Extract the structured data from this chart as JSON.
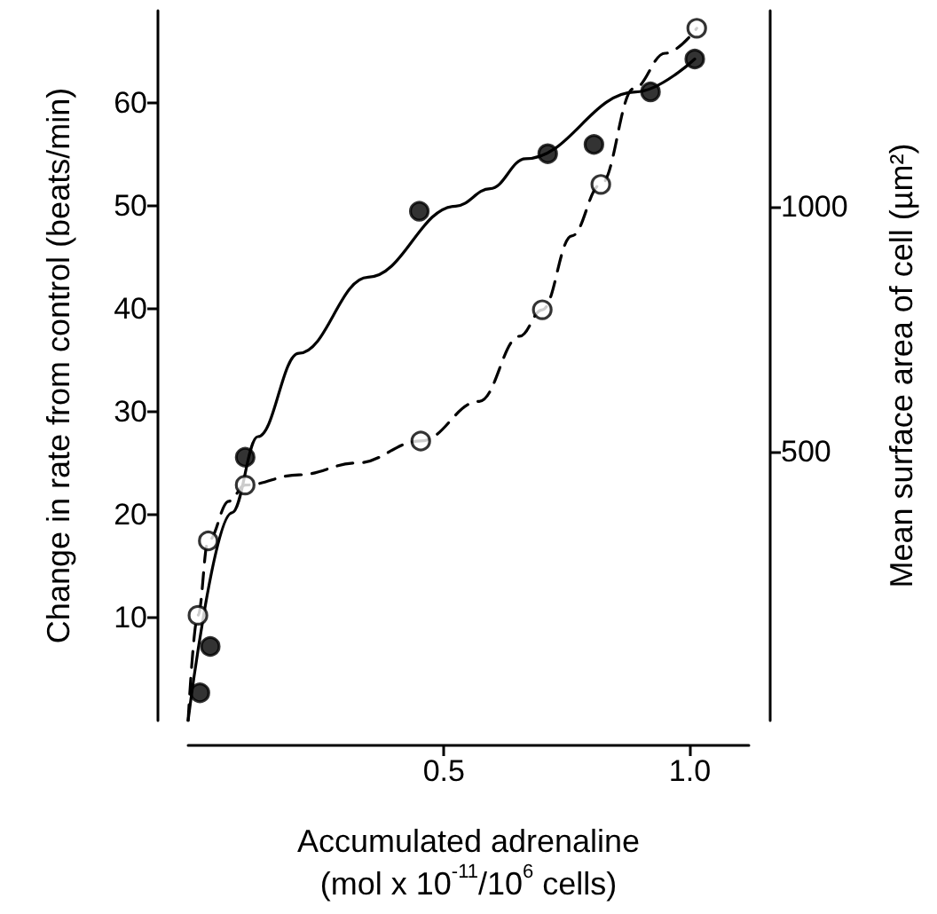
{
  "chart_data": {
    "type": "scatter",
    "xlabel": "Accumulated adrenaline\n(mol x 10$^{-11}$/10$^{6}$ cells)",
    "ylabel": "Change in rate from control (beats/min)",
    "y2label": "Mean surface area of cell (µm²)",
    "xlim": [
      -0.02,
      1.12
    ],
    "xticks": [
      0.5,
      {
        "value": 1,
        "label": "1.0"
      }
    ],
    "ylim": [
      0,
      69
    ],
    "yticks": [
      10,
      20,
      30,
      40,
      50,
      60
    ],
    "y2lim": [
      -50,
      1400
    ],
    "y2ticks": [
      500,
      1000
    ],
    "grid": false,
    "marker": "circle",
    "series": [
      {
        "color": "#000000",
        "x": [
          0.004,
          0.025,
          0.096,
          0.45,
          0.711,
          0.805,
          0.92,
          1.01
        ],
        "values": [
          2.7,
          7.2,
          25.6,
          49.5,
          55.1,
          56.0,
          61.1,
          64.3
        ]
      },
      {
        "axis": "y2",
        "color": "#ffffff",
        "x": [
          0,
          0.021,
          0.096,
          0.453,
          0.7,
          0.819,
          1.014
        ],
        "values": [
          165,
          317,
          431,
          521,
          789,
          1045,
          1364
        ]
      },
      {
        "type": "line",
        "color": "#000000",
        "line_style": "solid",
        "marker": "none",
        "x": [
          -0.02,
          0.069,
          0.122,
          0.205,
          0.346,
          0.524,
          0.594,
          0.666,
          0.89,
          1.01
        ],
        "values": [
          0,
          20.2,
          27.6,
          35.7,
          43.1,
          50,
          51.7,
          54.6,
          61.1,
          64.3
        ]
      },
      {
        "type": "line",
        "axis": "y2",
        "color": "#000000",
        "line_style": "dashed",
        "marker": "none",
        "x": [
          -0.02,
          0,
          0.021,
          0.063,
          0.096,
          0.205,
          0.323,
          0.453,
          0.572,
          0.654,
          0.7,
          0.76,
          0.819,
          0.886,
          0.95,
          1.014
        ],
        "values": [
          -50,
          165,
          317,
          398,
          431,
          452,
          476,
          521,
          602,
          735,
          789,
          940,
          1045,
          1241,
          1313,
          1364
        ]
      }
    ]
  }
}
